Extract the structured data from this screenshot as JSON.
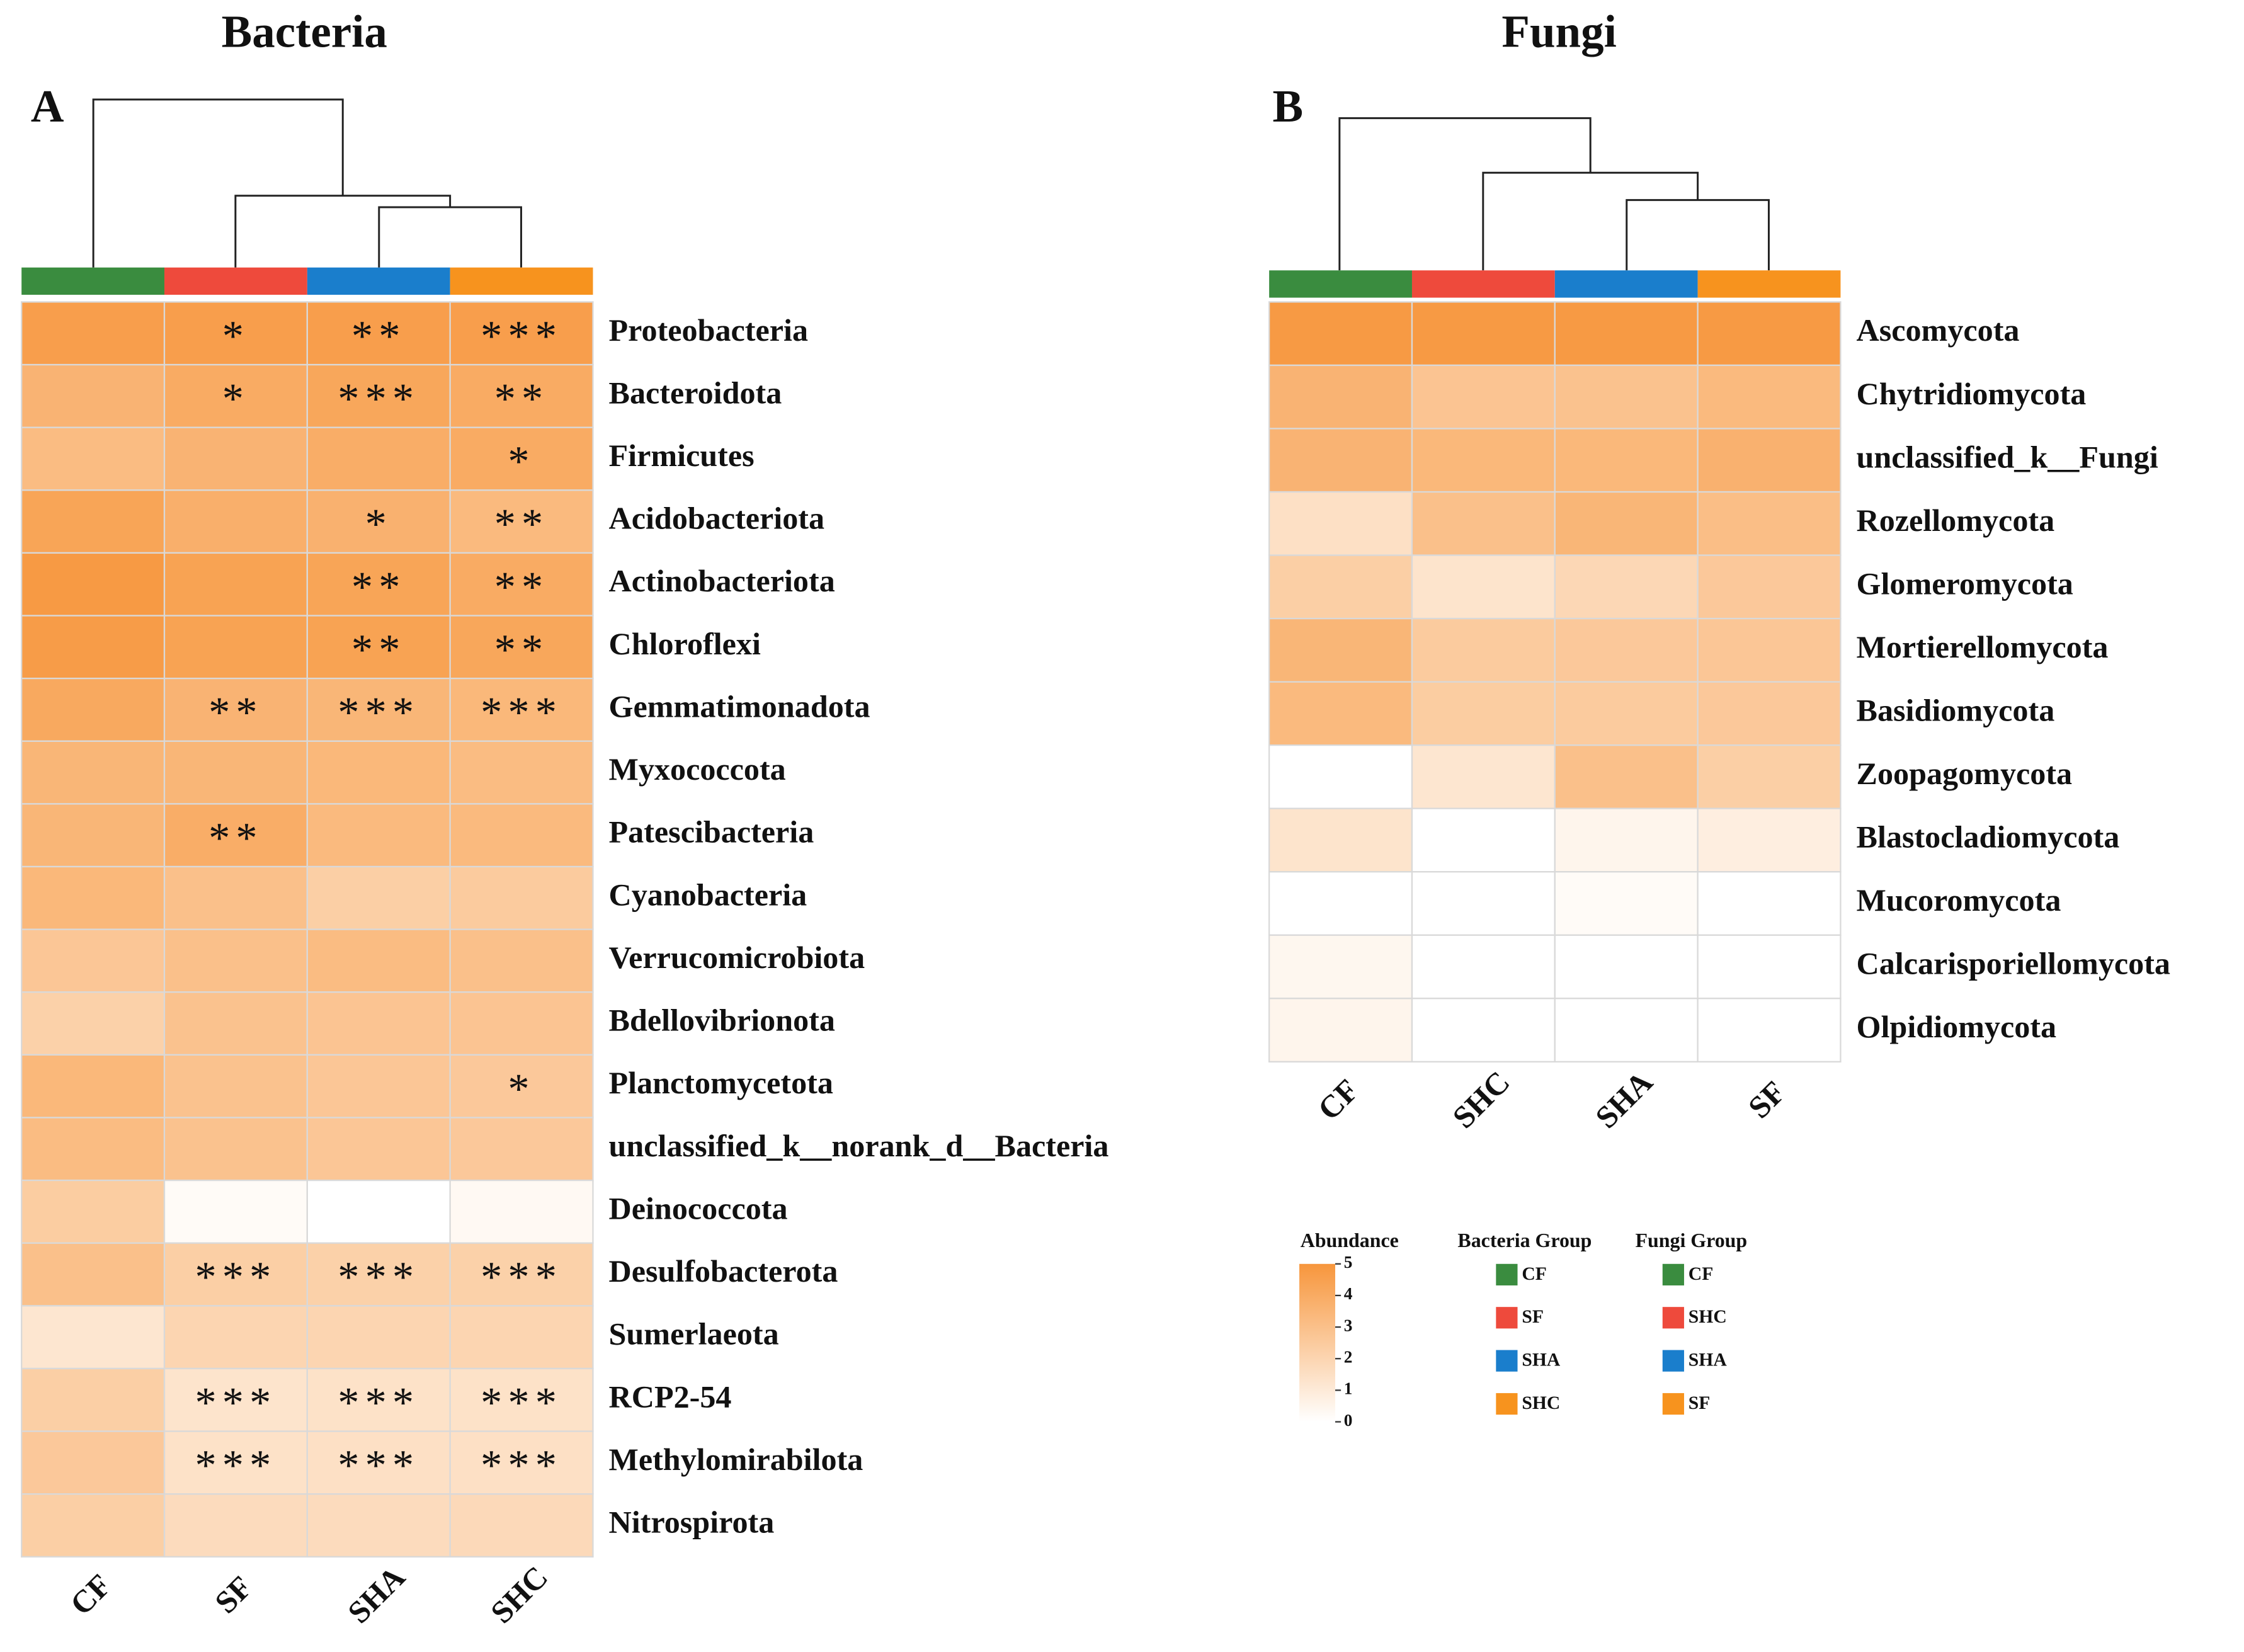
{
  "chart_data": [
    {
      "type": "heatmap",
      "title": "Bacteria",
      "panel_label": "A",
      "columns": [
        "CF",
        "SF",
        "SHA",
        "SHC"
      ],
      "column_colors": [
        "#3a8c3f",
        "#ee4a3c",
        "#1a7ecc",
        "#f7931e"
      ],
      "group_legend_title": "Bacteria Group",
      "rows": [
        "Proteobacteria",
        "Bacteroidota",
        "Firmicutes",
        "Acidobacteriota",
        "Actinobacteriota",
        "Chloroflexi",
        "Gemmatimonadota",
        "Myxococcota",
        "Patescibacteria",
        "Cyanobacteria",
        "Verrucomicrobiota",
        "Bdellovibrionota",
        "Planctomycetota",
        "unclassified_k__norank_d__Bacteria",
        "Deinococcota",
        "Desulfobacterota",
        "Sumerlaeota",
        "RCP2-54",
        "Methylomirabilota",
        "Nitrospirota"
      ],
      "values": [
        [
          4.6,
          4.6,
          4.6,
          4.6
        ],
        [
          3.6,
          4.0,
          4.2,
          4.0
        ],
        [
          3.2,
          3.6,
          3.9,
          4.0
        ],
        [
          4.3,
          3.8,
          3.7,
          3.3
        ],
        [
          4.8,
          4.4,
          4.3,
          4.0
        ],
        [
          4.7,
          4.4,
          4.4,
          4.2
        ],
        [
          4.1,
          3.6,
          3.5,
          3.4
        ],
        [
          3.5,
          3.5,
          3.4,
          3.2
        ],
        [
          3.5,
          3.9,
          3.3,
          3.3
        ],
        [
          3.4,
          3.0,
          2.3,
          2.5
        ],
        [
          2.7,
          3.0,
          3.2,
          3.0
        ],
        [
          2.2,
          2.9,
          2.8,
          2.8
        ],
        [
          3.4,
          2.9,
          2.7,
          2.6
        ],
        [
          3.2,
          2.9,
          2.7,
          2.6
        ],
        [
          2.4,
          0.2,
          0.0,
          0.3
        ],
        [
          3.0,
          2.3,
          2.2,
          2.2
        ],
        [
          1.2,
          2.0,
          2.0,
          2.0
        ],
        [
          2.3,
          1.3,
          1.4,
          1.4
        ],
        [
          2.6,
          1.4,
          1.5,
          1.5
        ],
        [
          2.3,
          1.7,
          1.7,
          1.8
        ]
      ],
      "annotations": [
        [
          null,
          "*",
          "**",
          "***"
        ],
        [
          null,
          "*",
          "***",
          "**"
        ],
        [
          null,
          null,
          null,
          "*"
        ],
        [
          null,
          null,
          "*",
          "**"
        ],
        [
          null,
          null,
          "**",
          "**"
        ],
        [
          null,
          null,
          "**",
          "**"
        ],
        [
          null,
          "**",
          "***",
          "***"
        ],
        [
          null,
          null,
          null,
          null
        ],
        [
          null,
          "**",
          null,
          null
        ],
        [
          null,
          null,
          null,
          null
        ],
        [
          null,
          null,
          null,
          null
        ],
        [
          null,
          null,
          null,
          null
        ],
        [
          null,
          null,
          null,
          "*"
        ],
        [
          null,
          null,
          null,
          null
        ],
        [
          null,
          null,
          null,
          null
        ],
        [
          null,
          "***",
          "***",
          "***"
        ],
        [
          null,
          null,
          null,
          null
        ],
        [
          null,
          "***",
          "***",
          "***"
        ],
        [
          null,
          "***",
          "***",
          "***"
        ],
        [
          null,
          null,
          null,
          null
        ]
      ]
    },
    {
      "type": "heatmap",
      "title": "Fungi",
      "panel_label": "B",
      "columns": [
        "CF",
        "SHC",
        "SHA",
        "SF"
      ],
      "column_colors": [
        "#3a8c3f",
        "#ee4a3c",
        "#1a7ecc",
        "#f7931e"
      ],
      "group_legend_title": "Fungi Group",
      "rows": [
        "Ascomycota",
        "Chytridiomycota",
        "unclassified_k__Fungi",
        "Rozellomycota",
        "Glomeromycota",
        "Mortierellomycota",
        "Basidiomycota",
        "Zoopagomycota",
        "Blastocladiomycota",
        "Mucoromycota",
        "Calcarisporiellomycota",
        "Olpidiomycota"
      ],
      "values": [
        [
          4.8,
          4.8,
          4.8,
          4.8
        ],
        [
          3.6,
          2.8,
          2.9,
          3.3
        ],
        [
          3.6,
          3.4,
          3.4,
          3.7
        ],
        [
          1.5,
          3.0,
          3.5,
          3.1
        ],
        [
          2.3,
          1.3,
          1.9,
          2.6
        ],
        [
          3.5,
          2.5,
          2.6,
          2.7
        ],
        [
          3.3,
          2.4,
          2.5,
          2.6
        ],
        [
          0.0,
          1.2,
          3.0,
          2.3
        ],
        [
          1.3,
          0.0,
          0.5,
          0.8
        ],
        [
          0.0,
          0.0,
          0.2,
          0.0
        ],
        [
          0.4,
          0.0,
          0.0,
          0.0
        ],
        [
          0.5,
          0.0,
          0.0,
          0.0
        ]
      ]
    }
  ],
  "colorbar": {
    "title": "Abundance",
    "clim": [
      0,
      5
    ],
    "ticks": [
      0,
      1,
      2,
      3,
      4,
      5
    ],
    "colors": [
      "#ffffff",
      "#f7963c"
    ]
  }
}
